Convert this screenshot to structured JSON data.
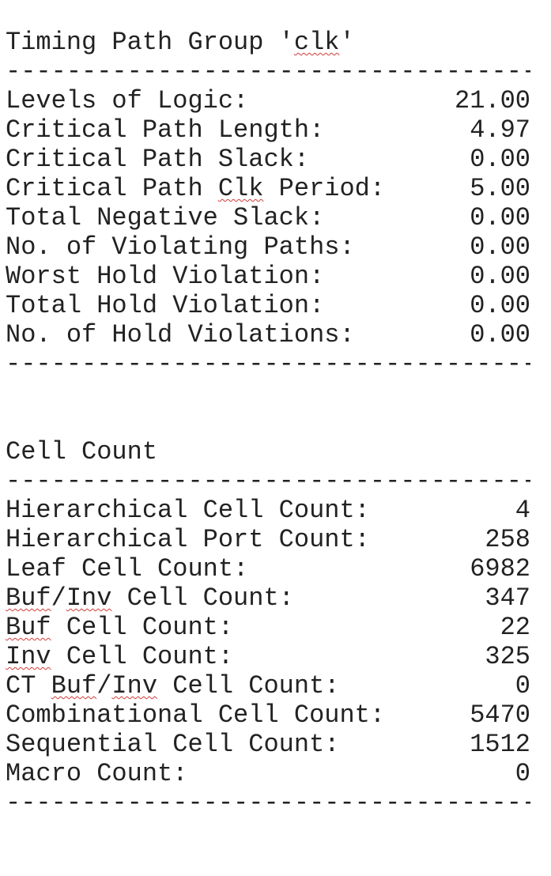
{
  "timing": {
    "title_prefix": "Timing Path Group '",
    "title_group": "clk",
    "title_suffix": "'",
    "divider": "-----------------------------------",
    "rows": [
      {
        "label": "Levels of Logic:",
        "value": "21.00"
      },
      {
        "label": "Critical Path Length:",
        "value": "4.97"
      },
      {
        "label": "Critical Path Slack:",
        "value": "0.00"
      },
      {
        "label_a": "Critical Path ",
        "label_b": "Clk",
        "label_c": " Period:",
        "value": "5.00"
      },
      {
        "label": "Total Negative Slack:",
        "value": "0.00"
      },
      {
        "label": "No. of Violating Paths:",
        "value": "0.00"
      },
      {
        "label": "Worst Hold Violation:",
        "value": "0.00"
      },
      {
        "label": "Total Hold Violation:",
        "value": "0.00"
      },
      {
        "label": "No. of Hold Violations:",
        "value": "0.00"
      }
    ]
  },
  "cells": {
    "title": "Cell Count",
    "divider": "-----------------------------------",
    "rows": [
      {
        "label": "Hierarchical Cell Count:",
        "value": "4"
      },
      {
        "label": "Hierarchical Port Count:",
        "value": "258"
      },
      {
        "label": "Leaf Cell Count:",
        "value": "6982"
      },
      {
        "label_a": "Buf",
        "label_b": "/",
        "label_c": "Inv",
        "label_d": " Cell Count:",
        "value": "347"
      },
      {
        "label_a": "Buf",
        "label_b": " Cell Count:",
        "value": "22"
      },
      {
        "label_a": "Inv",
        "label_b": " Cell Count:",
        "value": "325"
      },
      {
        "label_a": "CT ",
        "label_b": "Buf",
        "label_c": "/",
        "label_d": "Inv",
        "label_e": " Cell Count:",
        "value": "0"
      },
      {
        "label": "Combinational Cell Count:",
        "value": "5470"
      },
      {
        "label": "Sequential Cell Count:",
        "value": "1512"
      },
      {
        "label": "Macro Count:",
        "value": "0"
      }
    ]
  }
}
